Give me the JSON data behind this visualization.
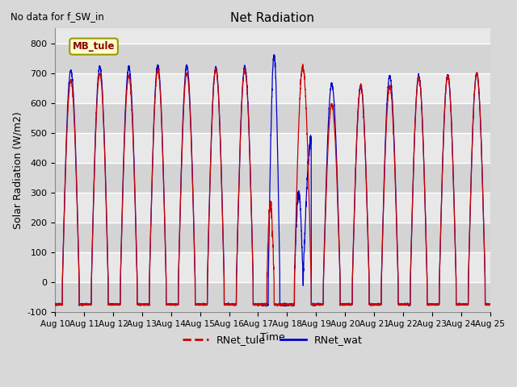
{
  "title": "Net Radiation",
  "subtitle": "No data for f_SW_in",
  "xlabel": "Time",
  "ylabel": "Solar Radiation (W/m2)",
  "ylim": [
    -100,
    850
  ],
  "yticks": [
    -100,
    0,
    100,
    200,
    300,
    400,
    500,
    600,
    700,
    800
  ],
  "bg_color": "#d8d8d8",
  "plot_bg_light": "#e8e8e8",
  "plot_bg_dark": "#d0d0d0",
  "legend_label1": "RNet_tule",
  "legend_label2": "RNet_wat",
  "line_color1": "#cc0000",
  "line_color2": "#0000cc",
  "mb_tule_box_color": "#ffffcc",
  "mb_tule_border_color": "#999900",
  "n_days": 15,
  "night_val": -75,
  "points_per_day": 288
}
